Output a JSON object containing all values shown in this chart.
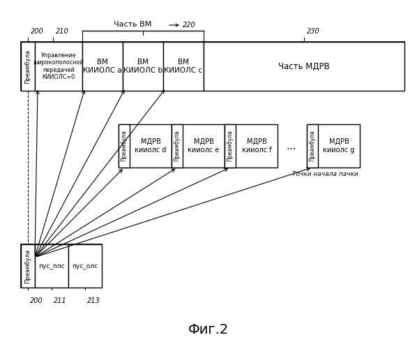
{
  "bg_color": "#ffffff",
  "title": "Фиг.2",
  "top_frame_label": "Часть ВМ",
  "top_frame_number": "220",
  "preamble_label": "Преамбула",
  "ctrl_label": "Управление\nширокополосной\nпередачей\nКИИОЛС=0",
  "bm_a_label": "ВМ\nКИИОЛС а",
  "bm_b_label": "ВМ\nКИИОЛС b",
  "bm_c_label": "ВМ\nКИИОЛС с",
  "mdrv_part_label": "Часть МДРВ",
  "mdrv_d_label": "МДРВ\nкииолс d",
  "mdrv_e_label": "МДРВ\nкииолс e",
  "mdrv_f_label": "МДРВ\nкииолс f",
  "mdrv_g_label": "МДРВ\nкииолс g",
  "burst_label": "Точки начала пачки",
  "pus_pls_label": "пус_плс",
  "pus_ols_label": "пус_олс",
  "label_200_top": "200",
  "label_210": "210",
  "label_220": "220",
  "label_230": "230",
  "label_200_bot": "200",
  "label_211": "211",
  "label_213": "213"
}
